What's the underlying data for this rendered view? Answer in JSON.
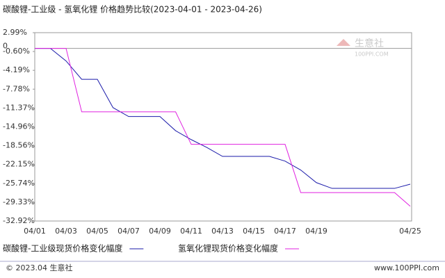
{
  "chart_data": {
    "type": "line",
    "title": "碳酸锂-工业级 - 氢氧化锂 价格趋势比较(2023-04-01 - 2023-04-26)",
    "categories": [
      "04/01",
      null,
      "04/03",
      null,
      "04/05",
      null,
      "04/07",
      null,
      "04/09",
      null,
      "04/11",
      null,
      "04/13",
      null,
      "04/15",
      null,
      "04/17",
      null,
      "04/19",
      null,
      null,
      null,
      null,
      null,
      "04/25"
    ],
    "series": [
      {
        "name": "碳酸锂-工业级现货价格变化幅度",
        "color": "#1a1aaa",
        "values": [
          0,
          0,
          -2.4,
          -5.9,
          -5.9,
          -11.3,
          -13.0,
          -13.0,
          -13.0,
          -15.7,
          -17.4,
          -18.9,
          -20.6,
          -20.6,
          -20.6,
          -20.6,
          -21.5,
          -23.2,
          -25.6,
          -26.7,
          -26.7,
          -26.7,
          -26.7,
          -26.7,
          -25.9
        ]
      },
      {
        "name": "氢氧化锂现货价格变化幅度",
        "color": "#e020e0",
        "values": [
          0,
          0,
          0,
          -12.1,
          -12.1,
          -12.1,
          -12.1,
          -12.1,
          -12.1,
          -12.1,
          -18.3,
          -18.3,
          -18.3,
          -18.3,
          -18.3,
          -18.3,
          -18.3,
          -27.5,
          -27.5,
          -27.5,
          -27.5,
          -27.5,
          -27.5,
          -27.5,
          -30.1
        ]
      }
    ],
    "ylim": [
      -32.92,
      2.99
    ],
    "yticks": [
      {
        "value": 2.99,
        "label": "2.99%"
      },
      {
        "value": -0.6,
        "label": "-0.60%"
      },
      {
        "value": -4.19,
        "label": "-4.19%"
      },
      {
        "value": -7.78,
        "label": "-7.78%"
      },
      {
        "value": -11.37,
        "label": "-11.37%"
      },
      {
        "value": -14.96,
        "label": "-14.96%"
      },
      {
        "value": -18.56,
        "label": "-18.56%"
      },
      {
        "value": -22.15,
        "label": "-22.15%"
      },
      {
        "value": -25.74,
        "label": "-25.74%"
      },
      {
        "value": -29.33,
        "label": "-29.33%"
      },
      {
        "value": -32.92,
        "label": "-32.92%"
      }
    ],
    "zero_line": {
      "value": 0,
      "label": "0"
    },
    "watermark": {
      "name": "生意社",
      "site": "100PPI.COM"
    }
  },
  "footer": {
    "left": "© 2023.04 生意社",
    "right": "www.100PPI.com"
  }
}
